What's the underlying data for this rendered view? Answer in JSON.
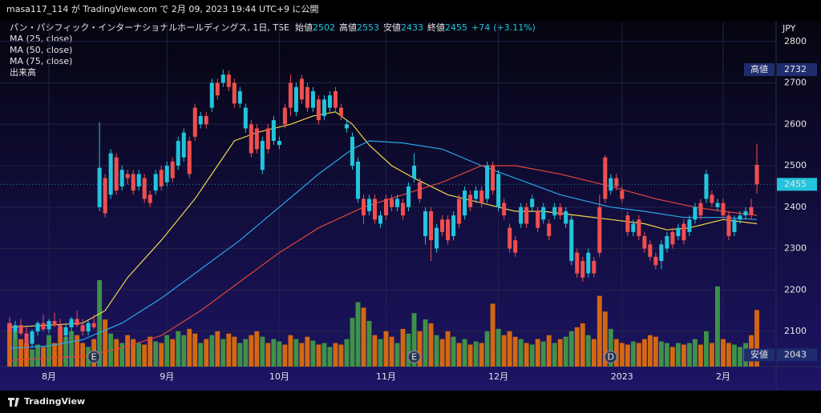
{
  "top_bar": "masa117_114 が TradingView.com で 2月 09, 2023 19:44 UTC+9 に公開",
  "footer_brand": "TradingView",
  "chart_data": {
    "type": "candlestick",
    "symbol": "パン・パシフィック・インターナショナルホールディングス, 1日, TSE",
    "ohlc_labels": [
      "始値",
      "高値",
      "安値",
      "終値"
    ],
    "change": {
      "value": 74,
      "label": "+74"
    },
    "change_pct": {
      "value": 3.11,
      "label": "(+3.11%)"
    },
    "volume_name": "出来高",
    "currency": "JPY",
    "candles": [
      [
        2120,
        2135,
        2095,
        2100
      ],
      [
        2100,
        2125,
        2080,
        2115
      ],
      [
        2115,
        2130,
        2090,
        2095
      ],
      [
        2095,
        2110,
        2043,
        2070
      ],
      [
        2070,
        2105,
        2060,
        2100
      ],
      [
        2100,
        2125,
        2090,
        2120
      ],
      [
        2120,
        2140,
        2100,
        2105
      ],
      [
        2105,
        2130,
        2095,
        2125
      ],
      [
        2125,
        2145,
        2110,
        2115
      ],
      [
        2115,
        2130,
        2085,
        2090
      ],
      [
        2090,
        2120,
        2080,
        2110
      ],
      [
        2110,
        2135,
        2100,
        2130
      ],
      [
        2130,
        2150,
        2110,
        2115
      ],
      [
        2115,
        2130,
        2090,
        2100
      ],
      [
        2100,
        2125,
        2090,
        2120
      ],
      [
        2120,
        2140,
        2105,
        2110
      ],
      [
        2400,
        2605,
        2390,
        2495
      ],
      [
        2470,
        2480,
        2375,
        2385
      ],
      [
        2430,
        2540,
        2420,
        2530
      ],
      [
        2520,
        2530,
        2430,
        2440
      ],
      [
        2450,
        2500,
        2440,
        2490
      ],
      [
        2480,
        2490,
        2455,
        2470
      ],
      [
        2480,
        2490,
        2430,
        2440
      ],
      [
        2450,
        2490,
        2440,
        2480
      ],
      [
        2470,
        2480,
        2410,
        2420
      ],
      [
        2430,
        2440,
        2400,
        2410
      ],
      [
        2440,
        2490,
        2430,
        2480
      ],
      [
        2490,
        2500,
        2440,
        2450
      ],
      [
        2460,
        2510,
        2450,
        2500
      ],
      [
        2510,
        2520,
        2460,
        2470
      ],
      [
        2500,
        2570,
        2490,
        2560
      ],
      [
        2520,
        2590,
        2510,
        2580
      ],
      [
        2560,
        2570,
        2470,
        2480
      ],
      [
        2640,
        2650,
        2560,
        2570
      ],
      [
        2600,
        2630,
        2590,
        2620
      ],
      [
        2620,
        2630,
        2590,
        2600
      ],
      [
        2640,
        2710,
        2630,
        2700
      ],
      [
        2700,
        2710,
        2660,
        2670
      ],
      [
        2700,
        2732,
        2690,
        2720
      ],
      [
        2720,
        2730,
        2680,
        2690
      ],
      [
        2700,
        2710,
        2640,
        2650
      ],
      [
        2650,
        2690,
        2640,
        2680
      ],
      [
        2590,
        2650,
        2580,
        2640
      ],
      [
        2600,
        2610,
        2520,
        2530
      ],
      [
        2590,
        2600,
        2530,
        2540
      ],
      [
        2490,
        2570,
        2480,
        2560
      ],
      [
        2590,
        2600,
        2530,
        2540
      ],
      [
        2560,
        2620,
        2550,
        2610
      ],
      [
        2550,
        2570,
        2540,
        2560
      ],
      [
        2640,
        2650,
        2590,
        2600
      ],
      [
        2700,
        2720,
        2620,
        2640
      ],
      [
        2630,
        2700,
        2620,
        2690
      ],
      [
        2710,
        2720,
        2650,
        2660
      ],
      [
        2690,
        2700,
        2630,
        2640
      ],
      [
        2640,
        2690,
        2630,
        2680
      ],
      [
        2660,
        2670,
        2600,
        2610
      ],
      [
        2620,
        2670,
        2610,
        2660
      ],
      [
        2640,
        2680,
        2630,
        2670
      ],
      [
        2680,
        2690,
        2630,
        2640
      ],
      [
        2640,
        2650,
        2610,
        2620
      ],
      [
        2590,
        2610,
        2580,
        2600
      ],
      [
        2500,
        2580,
        2490,
        2570
      ],
      [
        2420,
        2520,
        2410,
        2510
      ],
      [
        2420,
        2430,
        2360,
        2380
      ],
      [
        2390,
        2430,
        2380,
        2420
      ],
      [
        2420,
        2430,
        2360,
        2370
      ],
      [
        2360,
        2390,
        2350,
        2380
      ],
      [
        2420,
        2430,
        2370,
        2380
      ],
      [
        2420,
        2430,
        2390,
        2400
      ],
      [
        2400,
        2430,
        2390,
        2420
      ],
      [
        2410,
        2420,
        2370,
        2380
      ],
      [
        2400,
        2460,
        2390,
        2450
      ],
      [
        2470,
        2530,
        2460,
        2500
      ],
      [
        2460,
        2470,
        2410,
        2420
      ],
      [
        2330,
        2400,
        2310,
        2390
      ],
      [
        2390,
        2400,
        2270,
        2320
      ],
      [
        2300,
        2360,
        2290,
        2350
      ],
      [
        2370,
        2380,
        2330,
        2340
      ],
      [
        2370,
        2380,
        2310,
        2320
      ],
      [
        2330,
        2390,
        2320,
        2380
      ],
      [
        2420,
        2430,
        2350,
        2360
      ],
      [
        2380,
        2450,
        2370,
        2440
      ],
      [
        2430,
        2440,
        2390,
        2400
      ],
      [
        2420,
        2450,
        2410,
        2440
      ],
      [
        2440,
        2450,
        2400,
        2410
      ],
      [
        2420,
        2510,
        2410,
        2500
      ],
      [
        2500,
        2510,
        2430,
        2440
      ],
      [
        2400,
        2490,
        2390,
        2480
      ],
      [
        2410,
        2420,
        2370,
        2380
      ],
      [
        2350,
        2360,
        2290,
        2300
      ],
      [
        2320,
        2330,
        2280,
        2290
      ],
      [
        2360,
        2410,
        2350,
        2400
      ],
      [
        2400,
        2410,
        2350,
        2360
      ],
      [
        2400,
        2430,
        2390,
        2420
      ],
      [
        2390,
        2400,
        2340,
        2350
      ],
      [
        2370,
        2410,
        2360,
        2400
      ],
      [
        2360,
        2370,
        2320,
        2330
      ],
      [
        2380,
        2410,
        2370,
        2400
      ],
      [
        2400,
        2410,
        2370,
        2380
      ],
      [
        2360,
        2400,
        2350,
        2390
      ],
      [
        2270,
        2380,
        2260,
        2370
      ],
      [
        2290,
        2300,
        2230,
        2240
      ],
      [
        2270,
        2280,
        2220,
        2230
      ],
      [
        2240,
        2300,
        2230,
        2290
      ],
      [
        2270,
        2280,
        2230,
        2240
      ],
      [
        2400,
        2430,
        2280,
        2290
      ],
      [
        2520,
        2525,
        2410,
        2420
      ],
      [
        2440,
        2480,
        2430,
        2470
      ],
      [
        2470,
        2480,
        2440,
        2450
      ],
      [
        2440,
        2450,
        2410,
        2420
      ],
      [
        2380,
        2390,
        2330,
        2340
      ],
      [
        2340,
        2370,
        2330,
        2360
      ],
      [
        2370,
        2380,
        2320,
        2330
      ],
      [
        2330,
        2340,
        2290,
        2300
      ],
      [
        2310,
        2320,
        2270,
        2280
      ],
      [
        2280,
        2290,
        2250,
        2260
      ],
      [
        2270,
        2320,
        2250,
        2310
      ],
      [
        2300,
        2340,
        2290,
        2330
      ],
      [
        2340,
        2350,
        2300,
        2310
      ],
      [
        2330,
        2360,
        2320,
        2350
      ],
      [
        2360,
        2370,
        2310,
        2320
      ],
      [
        2340,
        2380,
        2330,
        2370
      ],
      [
        2370,
        2410,
        2360,
        2400
      ],
      [
        2410,
        2420,
        2370,
        2380
      ],
      [
        2420,
        2490,
        2410,
        2480
      ],
      [
        2430,
        2440,
        2400,
        2410
      ],
      [
        2400,
        2420,
        2390,
        2410
      ],
      [
        2410,
        2420,
        2370,
        2380
      ],
      [
        2380,
        2390,
        2320,
        2330
      ],
      [
        2340,
        2380,
        2330,
        2370
      ],
      [
        2370,
        2390,
        2360,
        2380
      ],
      [
        2380,
        2400,
        2370,
        2390
      ],
      [
        2400,
        2420,
        2370,
        2381
      ],
      [
        2502,
        2553,
        2433,
        2455
      ]
    ],
    "volume": [
      55,
      45,
      35,
      30,
      22,
      28,
      25,
      40,
      30,
      50,
      38,
      45,
      40,
      30,
      25,
      35,
      110,
      60,
      42,
      35,
      30,
      40,
      35,
      30,
      28,
      38,
      32,
      30,
      40,
      35,
      45,
      40,
      48,
      42,
      30,
      35,
      40,
      45,
      35,
      42,
      38,
      30,
      35,
      40,
      45,
      38,
      30,
      35,
      32,
      28,
      40,
      35,
      30,
      38,
      33,
      28,
      30,
      25,
      30,
      28,
      35,
      62,
      82,
      75,
      58,
      40,
      35,
      45,
      38,
      30,
      48,
      42,
      68,
      45,
      60,
      55,
      40,
      35,
      45,
      38,
      30,
      35,
      28,
      32,
      30,
      45,
      80,
      48,
      40,
      45,
      38,
      35,
      30,
      28,
      35,
      32,
      40,
      30,
      35,
      38,
      45,
      50,
      55,
      40,
      35,
      90,
      70,
      48,
      35,
      30,
      28,
      32,
      30,
      35,
      40,
      38,
      32,
      30,
      25,
      30,
      28,
      30,
      35,
      28,
      45,
      30,
      102,
      35,
      30,
      28,
      25,
      30,
      40,
      72
    ],
    "up_color": "#22c5dc",
    "down_color": "#ef4f4f",
    "volume_up_color": "#43a047",
    "volume_down_color": "#e8710a",
    "series": [
      {
        "name": "MA (25, close)",
        "color": "#f2d54a",
        "x": [
          0,
          7,
          13,
          17,
          21,
          27,
          33,
          37,
          40,
          44,
          50,
          54,
          58,
          61,
          64,
          68,
          72,
          78,
          84,
          90,
          95,
          101,
          107,
          113,
          117,
          121,
          127,
          133
        ],
        "values": [
          2110,
          2115,
          2120,
          2150,
          2230,
          2320,
          2420,
          2500,
          2560,
          2580,
          2600,
          2620,
          2630,
          2600,
          2550,
          2500,
          2470,
          2430,
          2410,
          2390,
          2390,
          2380,
          2370,
          2360,
          2345,
          2350,
          2370,
          2360
        ]
      },
      {
        "name": "MA (50, close)",
        "color": "#2aa7e8",
        "x": [
          0,
          7,
          13,
          20,
          27,
          34,
          41,
          48,
          55,
          61,
          64,
          70,
          77,
          84,
          90,
          98,
          107,
          113,
          120,
          127,
          133
        ],
        "values": [
          2059,
          2065,
          2080,
          2120,
          2180,
          2250,
          2320,
          2400,
          2480,
          2540,
          2560,
          2555,
          2540,
          2500,
          2470,
          2430,
          2400,
          2390,
          2375,
          2375,
          2370
        ]
      },
      {
        "name": "MA (75, close)",
        "color": "#e2453c",
        "x": [
          0,
          13,
          20,
          27,
          34,
          41,
          48,
          55,
          63,
          70,
          77,
          84,
          90,
          98,
          107,
          115,
          122,
          127,
          133
        ],
        "values": [
          2030,
          2040,
          2060,
          2090,
          2150,
          2220,
          2290,
          2350,
          2400,
          2430,
          2460,
          2500,
          2500,
          2480,
          2450,
          2420,
          2400,
          2390,
          2380
        ]
      }
    ],
    "events": [
      {
        "label": "E",
        "index": 15
      },
      {
        "label": "E",
        "index": 72
      },
      {
        "label": "D",
        "index": 107
      }
    ],
    "xticks": [
      {
        "value": 7,
        "label": "8月"
      },
      {
        "value": 28,
        "label": "9月"
      },
      {
        "value": 48,
        "label": "10月"
      },
      {
        "value": 67,
        "label": "11月"
      },
      {
        "value": 87,
        "label": "12月"
      },
      {
        "value": 109,
        "label": "2023"
      },
      {
        "value": 127,
        "label": "2月"
      }
    ],
    "ylim": [
      2015,
      2846
    ],
    "yticks": [
      2100,
      2200,
      2300,
      2400,
      2500,
      2600,
      2700,
      2800
    ],
    "high_tag": {
      "label": "高値",
      "value": 2732
    },
    "low_tag": {
      "label": "安値",
      "value": 2043
    },
    "grid": true
  }
}
